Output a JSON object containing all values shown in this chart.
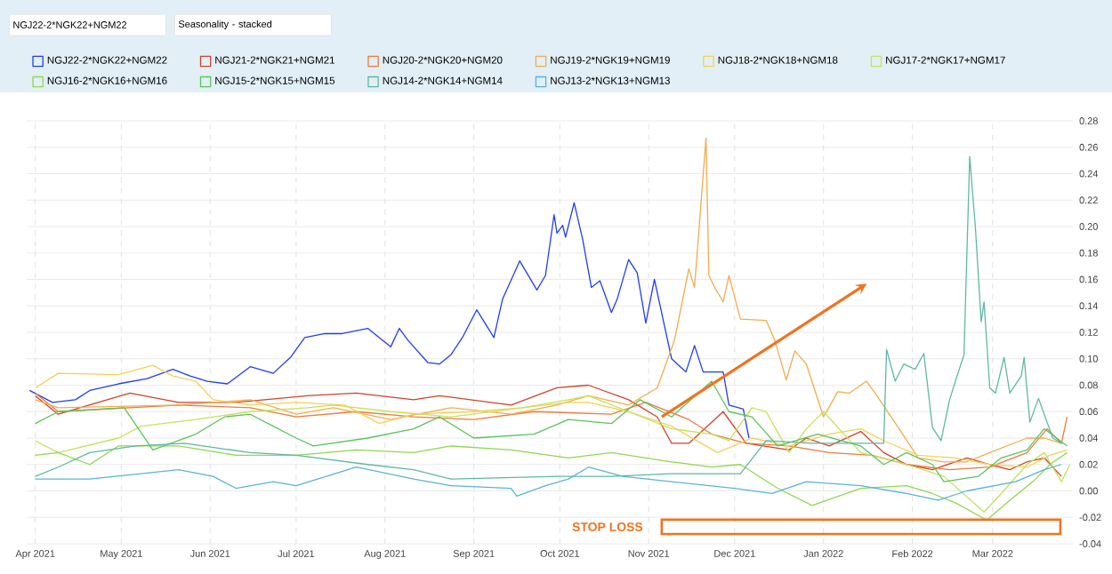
{
  "chart_data": {
    "type": "line",
    "title": "NGJ22-2*NGK22+NGM22",
    "subtitle": "Seasonality - stacked",
    "xlim": [
      "2021-03-29",
      "2022-03-29"
    ],
    "xticks": [
      {
        "value": "2021-04-01",
        "label": "Apr 2021"
      },
      {
        "value": "2021-05-01",
        "label": "May 2021"
      },
      {
        "value": "2021-06-01",
        "label": "Jun 2021"
      },
      {
        "value": "2021-07-01",
        "label": "Jul 2021"
      },
      {
        "value": "2021-08-01",
        "label": "Aug 2021"
      },
      {
        "value": "2021-09-01",
        "label": "Sep 2021"
      },
      {
        "value": "2021-10-01",
        "label": "Oct 2021"
      },
      {
        "value": "2021-11-01",
        "label": "Nov 2021"
      },
      {
        "value": "2021-12-01",
        "label": "Dec 2021"
      },
      {
        "value": "2022-01-01",
        "label": "Jan 2022"
      },
      {
        "value": "2022-02-01",
        "label": "Feb 2022"
      },
      {
        "value": "2022-03-01",
        "label": "Mar 2022"
      }
    ],
    "ylim": [
      -0.04,
      0.28
    ],
    "yticks": [
      {
        "value": -0.04,
        "label": "-0.04"
      },
      {
        "value": -0.02,
        "label": "-0.02"
      },
      {
        "value": 0,
        "label": "0.00"
      },
      {
        "value": 0.02,
        "label": "0.02"
      },
      {
        "value": 0.04,
        "label": "0.04"
      },
      {
        "value": 0.06,
        "label": "0.06"
      },
      {
        "value": 0.08,
        "label": "0.08"
      },
      {
        "value": 0.1,
        "label": "0.10"
      },
      {
        "value": 0.12,
        "label": "0.12"
      },
      {
        "value": 0.14,
        "label": "0.14"
      },
      {
        "value": 0.16,
        "label": "0.16"
      },
      {
        "value": 0.18,
        "label": "0.18"
      },
      {
        "value": 0.2,
        "label": "0.20"
      },
      {
        "value": 0.22,
        "label": "0.22"
      },
      {
        "value": 0.24,
        "label": "0.24"
      },
      {
        "value": 0.26,
        "label": "0.26"
      },
      {
        "value": 0.28,
        "label": "0.28"
      }
    ],
    "grid": true,
    "legend": "top",
    "annotations": [
      "STOP LOSS"
    ],
    "series": [
      {
        "name": "NGJ22-2*NGK22+NGM22",
        "color": "#1f3df5",
        "x": [
          "2021-03-30",
          "2021-04-07",
          "2021-04-15",
          "2021-04-20",
          "2021-04-30",
          "2021-05-10",
          "2021-05-19",
          "2021-05-25",
          "2021-05-31",
          "2021-06-07",
          "2021-06-15",
          "2021-06-23",
          "2021-06-29",
          "2021-07-04",
          "2021-07-11",
          "2021-07-17",
          "2021-07-26",
          "2021-07-30",
          "2021-08-03",
          "2021-08-06",
          "2021-08-09",
          "2021-08-16",
          "2021-08-20",
          "2021-08-24",
          "2021-08-28",
          "2021-09-02",
          "2021-09-08",
          "2021-09-11",
          "2021-09-17",
          "2021-09-23",
          "2021-09-26",
          "2021-09-29",
          "2021-09-30",
          "2021-10-02",
          "2021-10-03",
          "2021-10-06",
          "2021-10-09",
          "2021-10-12",
          "2021-10-15",
          "2021-10-19",
          "2021-10-21",
          "2021-10-25",
          "2021-10-28",
          "2021-10-31",
          "2021-11-03",
          "2021-11-06",
          "2021-11-09",
          "2021-11-14",
          "2021-11-17",
          "2021-11-20",
          "2021-11-27",
          "2021-11-29",
          "2021-12-04",
          "2021-12-06"
        ],
        "values": [
          0.076,
          0.067,
          0.069,
          0.076,
          0.081,
          0.085,
          0.092,
          0.087,
          0.083,
          0.081,
          0.094,
          0.089,
          0.101,
          0.116,
          0.119,
          0.119,
          0.123,
          0.116,
          0.109,
          0.123,
          0.114,
          0.097,
          0.096,
          0.103,
          0.116,
          0.137,
          0.116,
          0.145,
          0.174,
          0.152,
          0.163,
          0.209,
          0.195,
          0.201,
          0.192,
          0.218,
          0.19,
          0.154,
          0.159,
          0.135,
          0.145,
          0.175,
          0.165,
          0.127,
          0.16,
          0.13,
          0.1,
          0.09,
          0.11,
          0.09,
          0.09,
          0.065,
          0.062,
          0.04
        ]
      },
      {
        "name": "NGJ21-2*NGK21+NGM21",
        "color": "#d2412a",
        "x": [
          "2021-04-01",
          "2021-04-09",
          "2021-05-04",
          "2021-05-21",
          "2021-06-10",
          "2021-07-05",
          "2021-07-22",
          "2021-08-11",
          "2021-08-20",
          "2021-09-14",
          "2021-09-30",
          "2021-10-11",
          "2021-10-25",
          "2021-11-04",
          "2021-11-09",
          "2021-11-15",
          "2021-11-27",
          "2021-12-05",
          "2021-12-20",
          "2021-12-26",
          "2022-01-03",
          "2022-01-14",
          "2022-01-22",
          "2022-01-30",
          "2022-02-08",
          "2022-02-20",
          "2022-02-28",
          "2022-03-07",
          "2022-03-13",
          "2022-03-19",
          "2022-03-25"
        ],
        "values": [
          0.072,
          0.058,
          0.074,
          0.067,
          0.067,
          0.072,
          0.074,
          0.069,
          0.072,
          0.065,
          0.078,
          0.08,
          0.069,
          0.056,
          0.036,
          0.036,
          0.06,
          0.036,
          0.031,
          0.04,
          0.034,
          0.045,
          0.029,
          0.02,
          0.016,
          0.025,
          0.02,
          0.016,
          0.022,
          0.025,
          0.011
        ]
      },
      {
        "name": "NGJ20-2*NGK20+NGM20",
        "color": "#ef7a3a",
        "x": [
          "2021-04-01",
          "2021-04-09",
          "2021-05-21",
          "2021-06-15",
          "2021-07-01",
          "2021-07-22",
          "2021-08-11",
          "2021-09-01",
          "2021-09-22",
          "2021-10-19",
          "2021-10-31",
          "2021-11-15",
          "2021-11-23",
          "2021-12-05",
          "2021-12-20",
          "2022-01-03",
          "2022-01-18",
          "2022-01-30",
          "2022-02-14",
          "2022-02-28",
          "2022-03-13",
          "2022-03-20",
          "2022-03-25",
          "2022-03-27"
        ],
        "values": [
          0.074,
          0.06,
          0.065,
          0.063,
          0.056,
          0.06,
          0.056,
          0.054,
          0.06,
          0.058,
          0.067,
          0.054,
          0.043,
          0.036,
          0.034,
          0.029,
          0.027,
          0.02,
          0.016,
          0.018,
          0.029,
          0.047,
          0.036,
          0.056
        ]
      },
      {
        "name": "NGJ19-2*NGK19+NGM19",
        "color": "#f4ac4a",
        "x": [
          "2021-04-01",
          "2021-04-09",
          "2021-05-21",
          "2021-06-15",
          "2021-07-01",
          "2021-07-14",
          "2021-08-03",
          "2021-08-24",
          "2021-09-14",
          "2021-09-30",
          "2021-10-11",
          "2021-10-25",
          "2021-11-04",
          "2021-11-10",
          "2021-11-15",
          "2021-11-17",
          "2021-11-21",
          "2021-11-22",
          "2021-11-24",
          "2021-11-27",
          "2021-11-29",
          "2021-12-03",
          "2021-12-12",
          "2021-12-15",
          "2021-12-19",
          "2021-12-22",
          "2021-12-26",
          "2022-01-01",
          "2022-01-06",
          "2022-01-10",
          "2022-01-16",
          "2022-01-19",
          "2022-01-28",
          "2022-02-03",
          "2022-02-12",
          "2022-02-20",
          "2022-02-28",
          "2022-03-13",
          "2022-03-19",
          "2022-03-25"
        ],
        "values": [
          0.069,
          0.063,
          0.065,
          0.069,
          0.058,
          0.063,
          0.054,
          0.063,
          0.058,
          0.065,
          0.072,
          0.065,
          0.078,
          0.114,
          0.168,
          0.154,
          0.267,
          0.163,
          0.154,
          0.143,
          0.163,
          0.13,
          0.129,
          0.114,
          0.084,
          0.106,
          0.096,
          0.056,
          0.075,
          0.074,
          0.083,
          0.074,
          0.045,
          0.025,
          0.022,
          0.022,
          0.029,
          0.04,
          0.04,
          0.036
        ]
      },
      {
        "name": "NGJ18-2*NGK18+NGM18",
        "color": "#f3d155",
        "x": [
          "2021-04-01",
          "2021-04-09",
          "2021-04-30",
          "2021-05-12",
          "2021-05-19",
          "2021-05-27",
          "2021-06-02",
          "2021-06-15",
          "2021-07-01",
          "2021-07-18",
          "2021-07-30",
          "2021-08-11",
          "2021-09-01",
          "2021-09-18",
          "2021-10-04",
          "2021-10-11",
          "2021-10-25",
          "2021-11-09",
          "2021-11-25",
          "2021-12-07",
          "2021-12-20",
          "2022-01-03",
          "2022-01-14",
          "2022-01-22",
          "2022-02-03",
          "2022-02-16",
          "2022-02-28",
          "2022-03-13",
          "2022-03-21",
          "2022-03-27"
        ],
        "values": [
          0.078,
          0.089,
          0.088,
          0.095,
          0.087,
          0.083,
          0.069,
          0.065,
          0.067,
          0.065,
          0.051,
          0.058,
          0.06,
          0.063,
          0.067,
          0.067,
          0.06,
          0.049,
          0.029,
          0.04,
          0.034,
          0.043,
          0.047,
          0.038,
          0.027,
          0.025,
          0.02,
          0.018,
          0.027,
          0.031
        ]
      },
      {
        "name": "NGJ17-2*NGK17+NGM17",
        "color": "#c3e35a",
        "x": [
          "2021-04-01",
          "2021-04-09",
          "2021-04-30",
          "2021-05-08",
          "2021-05-27",
          "2021-06-15",
          "2021-07-05",
          "2021-07-14",
          "2021-08-03",
          "2021-08-24",
          "2021-09-18",
          "2021-10-04",
          "2021-10-11",
          "2021-10-25",
          "2021-11-09",
          "2021-11-23",
          "2021-11-29",
          "2021-12-07",
          "2021-12-12",
          "2021-12-20",
          "2021-12-26",
          "2022-01-01",
          "2022-01-14",
          "2022-01-30",
          "2022-02-12",
          "2022-02-26",
          "2022-03-04",
          "2022-03-13",
          "2022-03-19",
          "2022-03-25",
          "2022-03-28"
        ],
        "values": [
          0.038,
          0.029,
          0.04,
          0.049,
          0.054,
          0.06,
          0.063,
          0.065,
          0.06,
          0.056,
          0.063,
          0.069,
          0.072,
          0.06,
          0.047,
          0.043,
          0.038,
          0.063,
          0.06,
          0.029,
          0.047,
          0.06,
          0.029,
          0.02,
          0.011,
          -0.016,
          -0.002,
          0.02,
          0.029,
          0.007,
          0.02
        ]
      },
      {
        "name": "NGJ16-2*NGK16+NGM16",
        "color": "#8fd84f",
        "x": [
          "2021-04-01",
          "2021-04-09",
          "2021-04-20",
          "2021-04-30",
          "2021-05-21",
          "2021-06-10",
          "2021-07-01",
          "2021-07-22",
          "2021-08-11",
          "2021-08-24",
          "2021-09-14",
          "2021-10-04",
          "2021-10-19",
          "2021-11-09",
          "2021-11-23",
          "2021-12-03",
          "2021-12-16",
          "2021-12-28",
          "2022-01-14",
          "2022-01-30",
          "2022-02-08",
          "2022-02-16",
          "2022-02-27",
          "2022-03-07",
          "2022-03-15",
          "2022-03-21",
          "2022-03-27"
        ],
        "values": [
          0.027,
          0.029,
          0.02,
          0.034,
          0.034,
          0.027,
          0.027,
          0.031,
          0.029,
          0.034,
          0.031,
          0.025,
          0.029,
          0.022,
          0.018,
          0.02,
          0.002,
          -0.011,
          0.002,
          0.004,
          -0.002,
          -0.009,
          -0.022,
          -0.007,
          0.007,
          0.02,
          0.029
        ]
      },
      {
        "name": "NGJ15-2*NGK15+NGM15",
        "color": "#5cc35c",
        "x": [
          "2021-04-01",
          "2021-04-09",
          "2021-05-02",
          "2021-05-12",
          "2021-05-27",
          "2021-06-06",
          "2021-06-15",
          "2021-06-23",
          "2021-07-01",
          "2021-07-07",
          "2021-07-26",
          "2021-08-11",
          "2021-08-20",
          "2021-09-01",
          "2021-09-22",
          "2021-10-04",
          "2021-10-19",
          "2021-10-29",
          "2021-11-09",
          "2021-11-23",
          "2021-11-29",
          "2021-12-07",
          "2021-12-16",
          "2021-12-30",
          "2022-01-14",
          "2022-01-22",
          "2022-01-30",
          "2022-02-08",
          "2022-02-12",
          "2022-02-24",
          "2022-03-04",
          "2022-03-13",
          "2022-03-19",
          "2022-03-27"
        ],
        "values": [
          0.051,
          0.06,
          0.063,
          0.031,
          0.043,
          0.056,
          0.058,
          0.049,
          0.04,
          0.034,
          0.04,
          0.047,
          0.056,
          0.04,
          0.043,
          0.054,
          0.051,
          0.069,
          0.056,
          0.083,
          0.06,
          0.056,
          0.034,
          0.043,
          0.034,
          0.02,
          0.029,
          0.02,
          0.007,
          0.011,
          0.025,
          0.031,
          0.047,
          0.034
        ]
      },
      {
        "name": "NGJ14-2*NGK14+NGM14",
        "color": "#5db9a2",
        "x": [
          "2021-04-01",
          "2021-04-09",
          "2021-04-20",
          "2021-05-06",
          "2021-05-23",
          "2021-06-15",
          "2021-07-01",
          "2021-07-26",
          "2021-08-11",
          "2021-08-24",
          "2021-09-30",
          "2021-10-19",
          "2021-11-09",
          "2021-12-03",
          "2021-12-12",
          "2021-12-28",
          "2022-01-18",
          "2022-01-22",
          "2022-01-23",
          "2022-01-26",
          "2022-01-29",
          "2022-02-02",
          "2022-02-05",
          "2022-02-08",
          "2022-02-11",
          "2022-02-14",
          "2022-02-16",
          "2022-02-19",
          "2022-02-21",
          "2022-02-23",
          "2022-02-25",
          "2022-02-26",
          "2022-02-28",
          "2022-03-02",
          "2022-03-05",
          "2022-03-07",
          "2022-03-11",
          "2022-03-12",
          "2022-03-14",
          "2022-03-17",
          "2022-03-22",
          "2022-03-25"
        ],
        "values": [
          0.011,
          0.018,
          0.029,
          0.034,
          0.036,
          0.029,
          0.027,
          0.02,
          0.016,
          0.009,
          0.011,
          0.011,
          0.013,
          0.013,
          0.038,
          0.036,
          0.036,
          0.036,
          0.107,
          0.083,
          0.096,
          0.092,
          0.104,
          0.048,
          0.038,
          0.069,
          0.083,
          0.103,
          0.253,
          0.199,
          0.128,
          0.143,
          0.078,
          0.074,
          0.101,
          0.074,
          0.087,
          0.101,
          0.052,
          0.07,
          0.04,
          0.036
        ]
      },
      {
        "name": "NGJ13-2*NGK13+NGM13",
        "color": "#5ab4d9",
        "x": [
          "2021-04-01",
          "2021-04-20",
          "2021-05-21",
          "2021-06-02",
          "2021-06-10",
          "2021-06-23",
          "2021-07-01",
          "2021-07-22",
          "2021-08-11",
          "2021-08-24",
          "2021-09-14",
          "2021-09-16",
          "2021-09-26",
          "2021-10-04",
          "2021-10-11",
          "2021-10-23",
          "2021-11-09",
          "2021-12-01",
          "2021-12-14",
          "2021-12-26",
          "2022-01-14",
          "2022-01-30",
          "2022-02-10",
          "2022-02-20",
          "2022-03-09",
          "2022-03-19",
          "2022-03-25"
        ],
        "values": [
          0.009,
          0.009,
          0.016,
          0.011,
          0.002,
          0.007,
          0.004,
          0.018,
          0.009,
          0.004,
          0.002,
          -0.004,
          0.004,
          0.009,
          0.018,
          0.011,
          0.007,
          0.002,
          -0.002,
          0.007,
          0.004,
          -0.002,
          -0.007,
          0.0,
          0.007,
          0.016,
          0.02
        ]
      }
    ]
  }
}
